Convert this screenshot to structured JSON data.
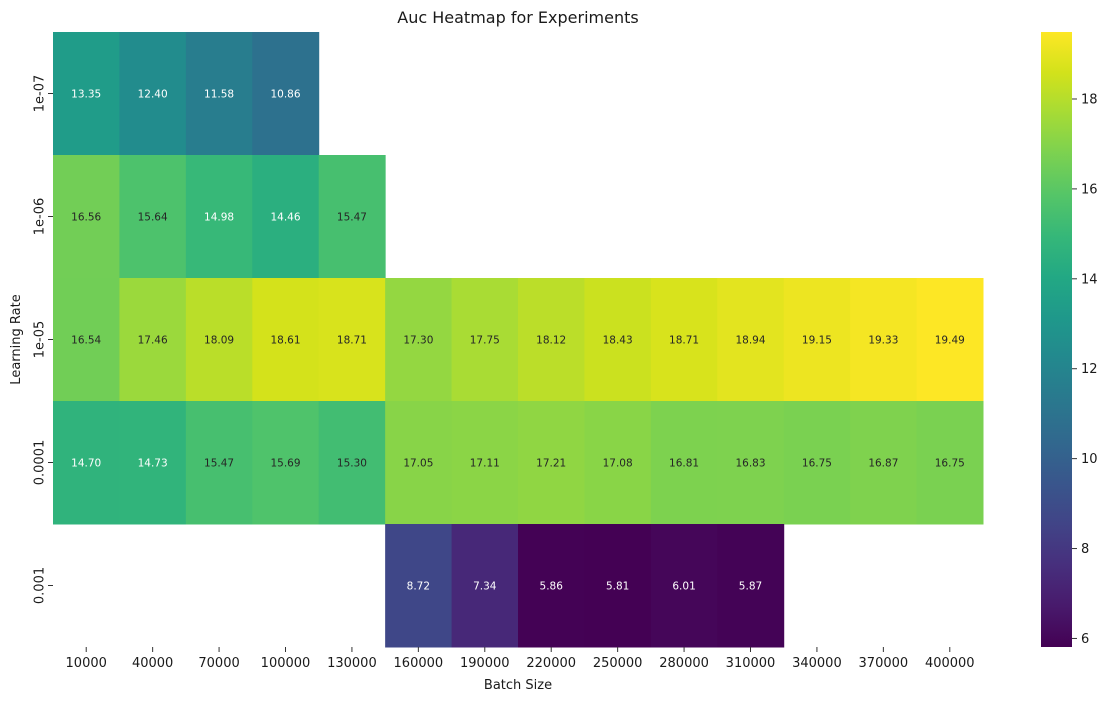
{
  "chart_data": {
    "type": "heatmap",
    "title": "Auc Heatmap for Experiments",
    "xlabel": "Batch Size",
    "ylabel": "Learning Rate",
    "x_categories": [
      "10000",
      "40000",
      "70000",
      "100000",
      "130000",
      "160000",
      "190000",
      "220000",
      "250000",
      "280000",
      "310000",
      "340000",
      "370000",
      "400000"
    ],
    "y_categories": [
      "1e-07",
      "1e-06",
      "1e-05",
      "0.0001",
      "0.001"
    ],
    "values": [
      [
        13.35,
        12.4,
        11.58,
        10.86,
        null,
        null,
        null,
        null,
        null,
        null,
        null,
        null,
        null,
        null
      ],
      [
        16.56,
        15.64,
        14.98,
        14.46,
        15.47,
        null,
        null,
        null,
        null,
        null,
        null,
        null,
        null,
        null
      ],
      [
        16.54,
        17.46,
        18.09,
        18.61,
        18.71,
        17.3,
        17.75,
        18.12,
        18.43,
        18.71,
        18.94,
        19.15,
        19.33,
        19.49
      ],
      [
        14.7,
        14.73,
        15.47,
        15.69,
        15.3,
        17.05,
        17.11,
        17.21,
        17.08,
        16.81,
        16.83,
        16.75,
        16.87,
        16.75
      ],
      [
        null,
        null,
        null,
        null,
        null,
        8.72,
        7.34,
        5.86,
        5.81,
        6.01,
        5.87,
        null,
        null,
        null
      ]
    ],
    "value_format": "2 decimals",
    "colormap": "viridis",
    "colorbar": {
      "min": 5.81,
      "max": 19.49,
      "ticks": [
        6,
        8,
        10,
        12,
        14,
        16,
        18
      ]
    },
    "grid": false
  }
}
